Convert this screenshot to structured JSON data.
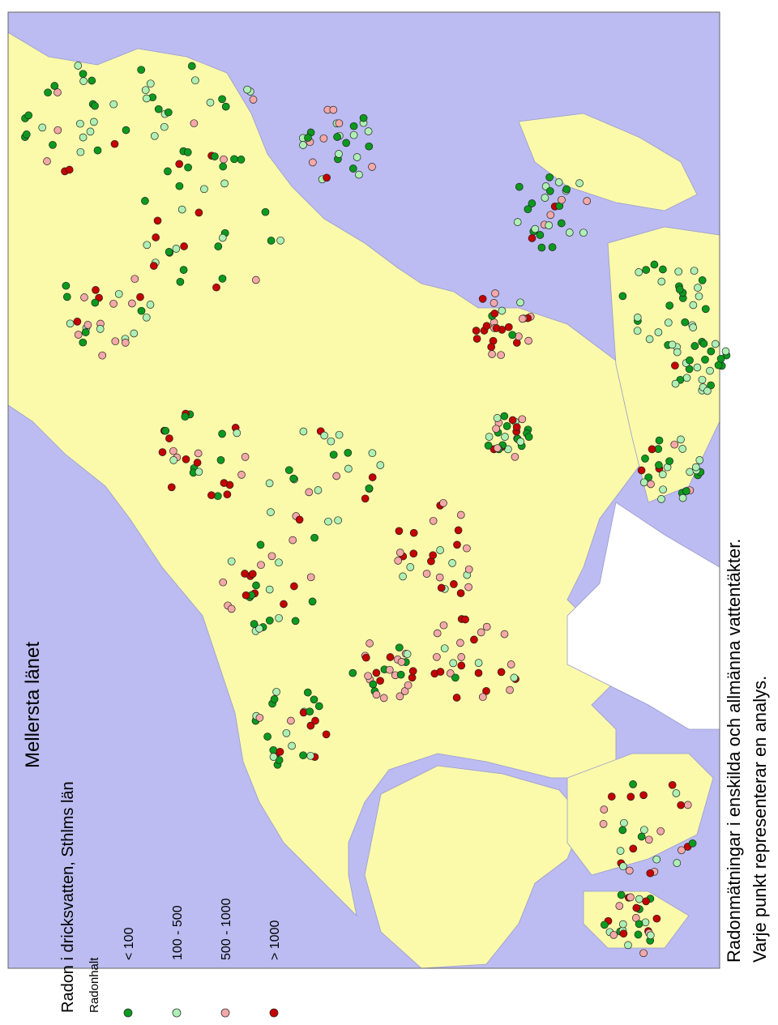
{
  "title": "Mellersta länet",
  "subtitle": "Radon i dricksvatten, Sthlms län",
  "legend": {
    "title": "Radonhalt",
    "items": [
      {
        "label": "< 100",
        "color": "#0b9a1e"
      },
      {
        "label": "100 - 500",
        "color": "#aef0b4"
      },
      {
        "label": "500 - 1000",
        "color": "#f4a8a8"
      },
      {
        "label": "> 1000",
        "color": "#c40000"
      }
    ]
  },
  "caption": [
    "Radonmätningar i enskilda och allmänna vattentäkter.",
    "Varje punkt representerar en analys."
  ]
}
